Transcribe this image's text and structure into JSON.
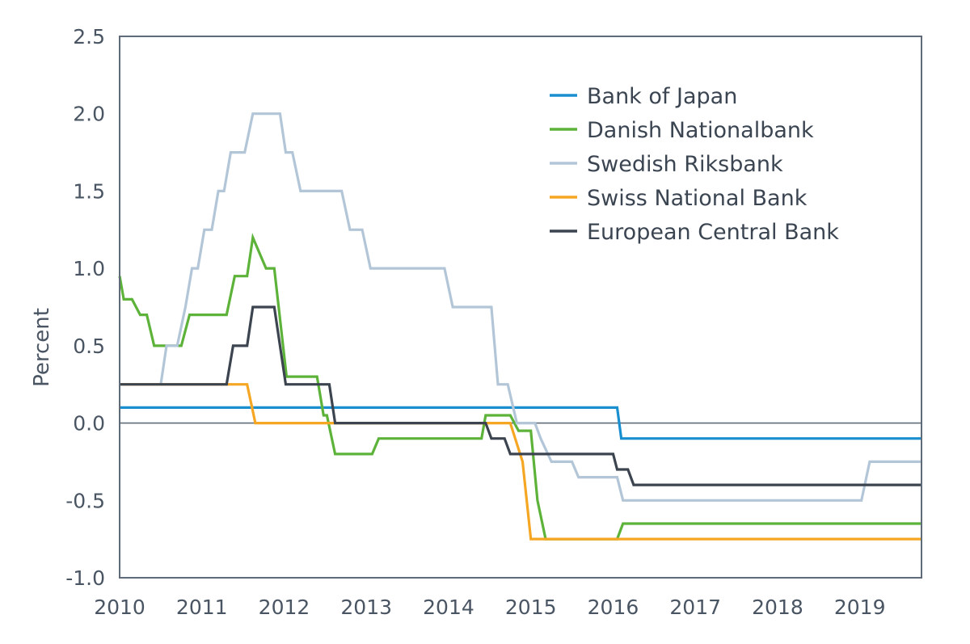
{
  "chart_data": {
    "type": "line",
    "title": "",
    "xlabel": "",
    "ylabel": "Percent",
    "xlim": [
      2010,
      2019.75
    ],
    "ylim": [
      -1.0,
      2.5
    ],
    "x_ticks": [
      "2010",
      "2011",
      "2012",
      "2013",
      "2014",
      "2015",
      "2016",
      "2017",
      "2018",
      "2019"
    ],
    "y_ticks": [
      "2.5",
      "2.0",
      "1.5",
      "1.0",
      "0.5",
      "0.0",
      "-0.5",
      "-1.0"
    ],
    "zero_line": true,
    "legend_position": "top-right",
    "series": [
      {
        "name": "Bank of Japan",
        "color": "#1a8fd0",
        "points": [
          [
            2010.0,
            0.1
          ],
          [
            2016.05,
            0.1
          ],
          [
            2016.1,
            -0.1
          ],
          [
            2019.75,
            -0.1
          ]
        ]
      },
      {
        "name": "Danish Nationalbank",
        "color": "#5db33a",
        "points": [
          [
            2010.0,
            0.95
          ],
          [
            2010.05,
            0.8
          ],
          [
            2010.15,
            0.8
          ],
          [
            2010.25,
            0.7
          ],
          [
            2010.33,
            0.7
          ],
          [
            2010.42,
            0.5
          ],
          [
            2010.75,
            0.5
          ],
          [
            2010.85,
            0.7
          ],
          [
            2011.3,
            0.7
          ],
          [
            2011.4,
            0.95
          ],
          [
            2011.55,
            0.95
          ],
          [
            2011.62,
            1.2
          ],
          [
            2011.78,
            1.0
          ],
          [
            2011.88,
            1.0
          ],
          [
            2012.03,
            0.3
          ],
          [
            2012.4,
            0.3
          ],
          [
            2012.48,
            0.05
          ],
          [
            2012.52,
            0.05
          ],
          [
            2012.62,
            -0.2
          ],
          [
            2013.07,
            -0.2
          ],
          [
            2013.15,
            -0.1
          ],
          [
            2014.4,
            -0.1
          ],
          [
            2014.45,
            0.05
          ],
          [
            2014.75,
            0.05
          ],
          [
            2014.85,
            -0.05
          ],
          [
            2015.0,
            -0.05
          ],
          [
            2015.08,
            -0.5
          ],
          [
            2015.18,
            -0.75
          ],
          [
            2016.05,
            -0.75
          ],
          [
            2016.12,
            -0.65
          ],
          [
            2019.75,
            -0.65
          ]
        ]
      },
      {
        "name": "Swedish Riksbank",
        "color": "#b3c6d8",
        "points": [
          [
            2010.5,
            0.25
          ],
          [
            2010.57,
            0.5
          ],
          [
            2010.7,
            0.5
          ],
          [
            2010.8,
            0.75
          ],
          [
            2010.88,
            1.0
          ],
          [
            2010.95,
            1.0
          ],
          [
            2011.03,
            1.25
          ],
          [
            2011.12,
            1.25
          ],
          [
            2011.2,
            1.5
          ],
          [
            2011.27,
            1.5
          ],
          [
            2011.35,
            1.75
          ],
          [
            2011.52,
            1.75
          ],
          [
            2011.62,
            2.0
          ],
          [
            2011.95,
            2.0
          ],
          [
            2012.02,
            1.75
          ],
          [
            2012.1,
            1.75
          ],
          [
            2012.2,
            1.5
          ],
          [
            2012.7,
            1.5
          ],
          [
            2012.8,
            1.25
          ],
          [
            2012.95,
            1.25
          ],
          [
            2013.05,
            1.0
          ],
          [
            2013.95,
            1.0
          ],
          [
            2014.05,
            0.75
          ],
          [
            2014.52,
            0.75
          ],
          [
            2014.6,
            0.25
          ],
          [
            2014.72,
            0.25
          ],
          [
            2014.83,
            0.0
          ],
          [
            2015.05,
            0.0
          ],
          [
            2015.12,
            -0.1
          ],
          [
            2015.25,
            -0.25
          ],
          [
            2015.5,
            -0.25
          ],
          [
            2015.58,
            -0.35
          ],
          [
            2016.05,
            -0.35
          ],
          [
            2016.12,
            -0.5
          ],
          [
            2019.02,
            -0.5
          ],
          [
            2019.12,
            -0.25
          ],
          [
            2019.75,
            -0.25
          ]
        ]
      },
      {
        "name": "Swiss National Bank",
        "color": "#f5a623",
        "points": [
          [
            2010.0,
            0.25
          ],
          [
            2011.55,
            0.25
          ],
          [
            2011.65,
            0.0
          ],
          [
            2014.75,
            0.0
          ],
          [
            2014.9,
            -0.25
          ],
          [
            2015.0,
            -0.75
          ],
          [
            2019.75,
            -0.75
          ]
        ]
      },
      {
        "name": "European Central Bank",
        "color": "#3c4450",
        "points": [
          [
            2010.0,
            0.25
          ],
          [
            2011.3,
            0.25
          ],
          [
            2011.38,
            0.5
          ],
          [
            2011.55,
            0.5
          ],
          [
            2011.62,
            0.75
          ],
          [
            2011.88,
            0.75
          ],
          [
            2012.02,
            0.25
          ],
          [
            2012.55,
            0.25
          ],
          [
            2012.62,
            0.0
          ],
          [
            2014.45,
            0.0
          ],
          [
            2014.52,
            -0.1
          ],
          [
            2014.68,
            -0.1
          ],
          [
            2014.75,
            -0.2
          ],
          [
            2016.0,
            -0.2
          ],
          [
            2016.05,
            -0.3
          ],
          [
            2016.18,
            -0.3
          ],
          [
            2016.25,
            -0.4
          ],
          [
            2019.75,
            -0.4
          ]
        ]
      }
    ]
  }
}
